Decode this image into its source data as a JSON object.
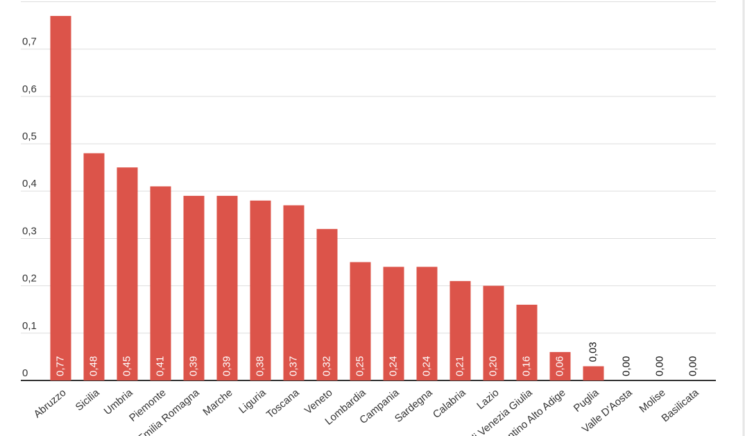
{
  "chart_data": {
    "type": "bar",
    "categories": [
      "Abruzzo",
      "Sicilia",
      "Umbria",
      "Piemonte",
      "Emilia Romagna",
      "Marche",
      "Liguria",
      "Toscana",
      "Veneto",
      "Lombardia",
      "Campania",
      "Sardegna",
      "Calabria",
      "Lazio",
      "Friuli Venezia Giulia",
      "Trentino Alto Adige",
      "Puglia",
      "Valle D'Aosta",
      "Molise",
      "Basilicata"
    ],
    "values": [
      0.77,
      0.48,
      0.45,
      0.41,
      0.39,
      0.39,
      0.38,
      0.37,
      0.32,
      0.25,
      0.24,
      0.24,
      0.21,
      0.2,
      0.16,
      0.06,
      0.03,
      0.0,
      0.0,
      0.0
    ],
    "value_labels": [
      "0,77",
      "0,48",
      "0,45",
      "0,41",
      "0,39",
      "0,39",
      "0,38",
      "0,37",
      "0,32",
      "0,25",
      "0,24",
      "0,24",
      "0,21",
      "0,20",
      "0,16",
      "0,06",
      "0,03",
      "0,00",
      "0,00",
      "0,00"
    ],
    "color": "#dc544a",
    "ylim": [
      0,
      0.8
    ],
    "yticks": [
      0,
      {
        "value": 0.1,
        "label": "0,1"
      },
      {
        "value": 0.2,
        "label": "0,2"
      },
      {
        "value": 0.3,
        "label": "0,3"
      },
      {
        "value": 0.4,
        "label": "0,4"
      },
      {
        "value": 0.5,
        "label": "0,5"
      },
      {
        "value": 0.6,
        "label": "0,6"
      },
      {
        "value": 0.7,
        "label": "0,7"
      }
    ],
    "grid": true
  }
}
